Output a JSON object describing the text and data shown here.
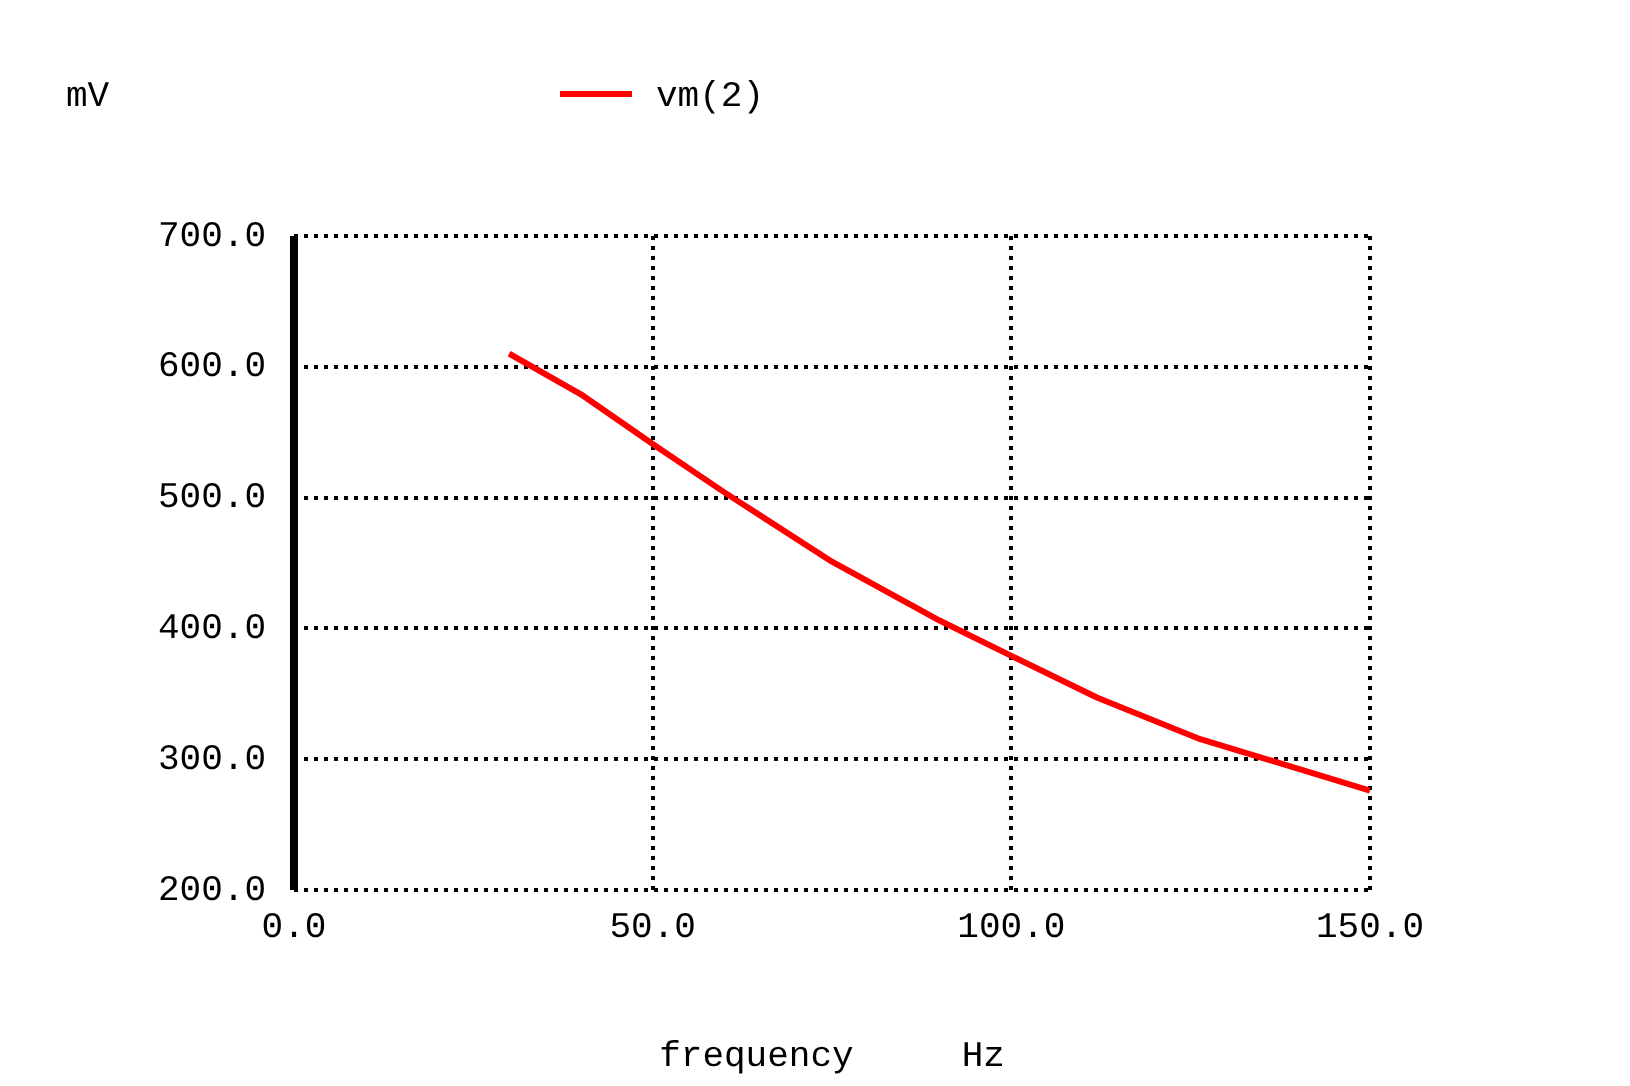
{
  "chart_data": {
    "type": "line",
    "xlabel": "frequency     Hz",
    "ylabel": "mV",
    "series": [
      {
        "name": "vm(2)",
        "color": "#ff0000",
        "x": [
          30,
          40,
          50,
          60,
          75,
          90,
          100,
          112,
          126,
          150
        ],
        "values": [
          610,
          579,
          541,
          504,
          451,
          406,
          379,
          347,
          316,
          276
        ]
      }
    ],
    "xlim": [
      0,
      150
    ],
    "xticks": [
      {
        "value": 0,
        "label": "0.0"
      },
      {
        "value": 50,
        "label": "50.0"
      },
      {
        "value": 100,
        "label": "100.0"
      },
      {
        "value": 150,
        "label": "150.0"
      }
    ],
    "ylim": [
      200,
      700
    ],
    "yticks": [
      {
        "value": 200,
        "label": "200.0"
      },
      {
        "value": 300,
        "label": "300.0"
      },
      {
        "value": 400,
        "label": "400.0"
      },
      {
        "value": 500,
        "label": "500.0"
      },
      {
        "value": 600,
        "label": "600.0"
      },
      {
        "value": 700,
        "label": "700.0"
      }
    ],
    "grid": true,
    "legend": "top",
    "marker": "none",
    "line_style": "solid"
  }
}
